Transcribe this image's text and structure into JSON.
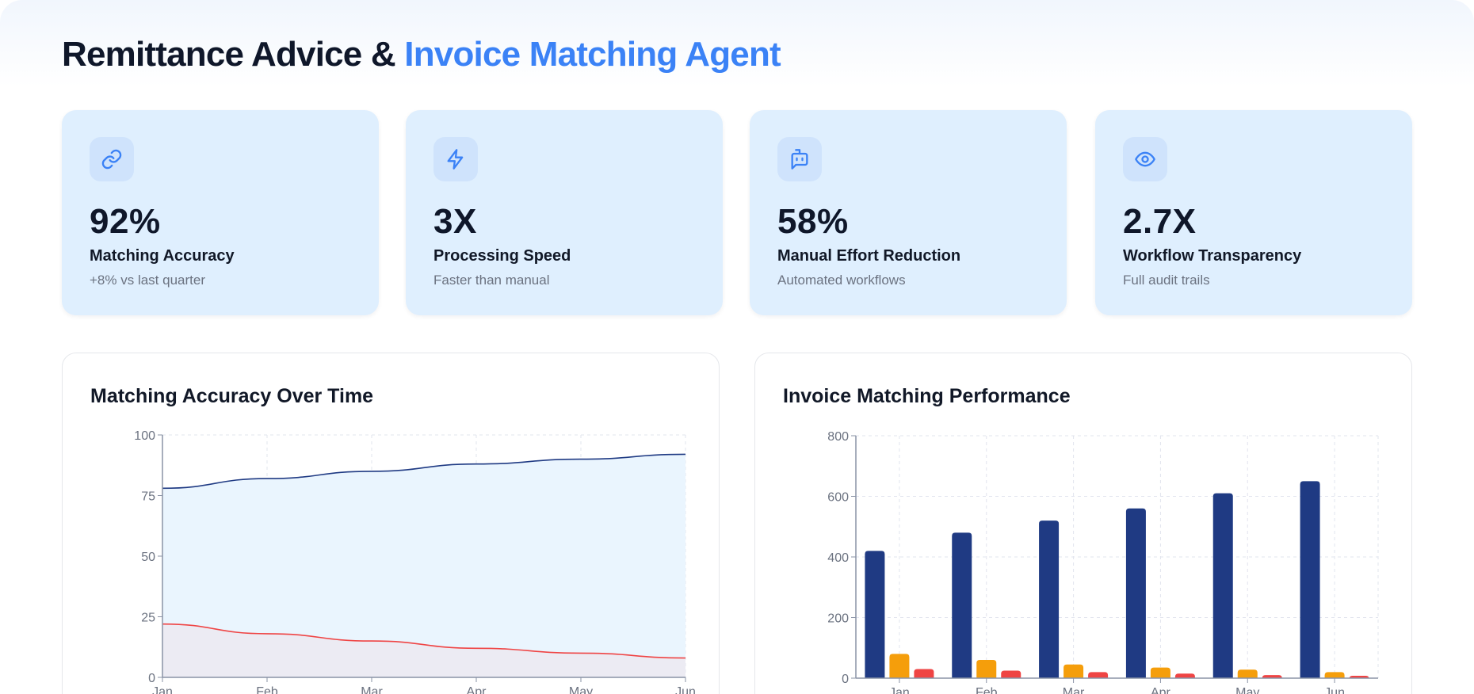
{
  "header": {
    "title_main": "Remittance Advice & ",
    "title_accent": "Invoice Matching Agent"
  },
  "colors": {
    "accent": "#3b82f6",
    "card_bg": "#dfeffe",
    "navy": "#1f3a83",
    "orange": "#f59e0b",
    "red": "#ef4444"
  },
  "metrics": [
    {
      "icon": "link-icon",
      "value": "92%",
      "label": "Matching Accuracy",
      "sub": "+8% vs last quarter"
    },
    {
      "icon": "lightning-icon",
      "value": "3X",
      "label": "Processing Speed",
      "sub": "Faster than manual"
    },
    {
      "icon": "bot-message-icon",
      "value": "58%",
      "label": "Manual Effort Reduction",
      "sub": "Automated workflows"
    },
    {
      "icon": "eye-icon",
      "value": "2.7X",
      "label": "Workflow Transparency",
      "sub": "Full audit trails"
    }
  ],
  "chart_data": [
    {
      "type": "area",
      "title": "Matching Accuracy Over Time",
      "categories": [
        "Jan",
        "Feb",
        "Mar",
        "Apr",
        "May",
        "Jun"
      ],
      "series": [
        {
          "values": [
            78,
            82,
            85,
            88,
            90,
            92
          ],
          "color": "#1f3a83",
          "fill": "#eaf5fe"
        },
        {
          "values": [
            22,
            18,
            15,
            12,
            10,
            8
          ],
          "color": "#ef4444",
          "fill": "#ecebf3"
        }
      ],
      "ylim": [
        0,
        100
      ],
      "yticks": [
        0,
        25,
        50,
        75,
        100
      ],
      "grid": true
    },
    {
      "type": "bar",
      "title": "Invoice Matching Performance",
      "categories": [
        "Jan",
        "Feb",
        "Mar",
        "Apr",
        "May",
        "Jun"
      ],
      "series": [
        {
          "values": [
            420,
            480,
            520,
            560,
            610,
            650
          ],
          "color": "#1f3a83"
        },
        {
          "values": [
            80,
            60,
            45,
            35,
            28,
            20
          ],
          "color": "#f59e0b"
        },
        {
          "values": [
            30,
            25,
            20,
            15,
            10,
            8
          ],
          "color": "#ef4444"
        }
      ],
      "ylim": [
        0,
        800
      ],
      "yticks": [
        0,
        200,
        400,
        600,
        800
      ],
      "grid": true
    }
  ]
}
